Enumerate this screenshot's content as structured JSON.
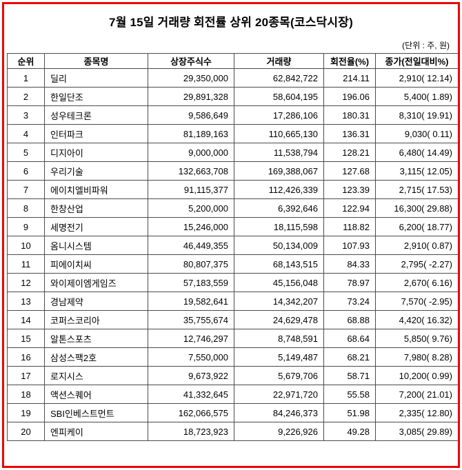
{
  "title": "7월 15일 거래량 회전률 상위 20종목(코스닥시장)",
  "unit_note": "(단위 : 주, 원)",
  "table": {
    "headers": [
      "순위",
      "종목명",
      "상장주식수",
      "거래량",
      "회전율(%)",
      "종가(전일대비%)"
    ],
    "rows": [
      {
        "rank": "1",
        "name": "딜리",
        "shares": "29,350,000",
        "volume": "62,842,722",
        "turnover": "214.11",
        "close": "2,910( 12.14)"
      },
      {
        "rank": "2",
        "name": "한일단조",
        "shares": "29,891,328",
        "volume": "58,604,195",
        "turnover": "196.06",
        "close": "5,400(  1.89)"
      },
      {
        "rank": "3",
        "name": "성우테크론",
        "shares": "9,586,649",
        "volume": "17,286,106",
        "turnover": "180.31",
        "close": "8,310( 19.91)"
      },
      {
        "rank": "4",
        "name": "인터파크",
        "shares": "81,189,163",
        "volume": "110,665,130",
        "turnover": "136.31",
        "close": "9,030(  0.11)"
      },
      {
        "rank": "5",
        "name": "디지아이",
        "shares": "9,000,000",
        "volume": "11,538,794",
        "turnover": "128.21",
        "close": "6,480( 14.49)"
      },
      {
        "rank": "6",
        "name": "우리기술",
        "shares": "132,663,708",
        "volume": "169,388,067",
        "turnover": "127.68",
        "close": "3,115( 12.05)"
      },
      {
        "rank": "7",
        "name": "에이치엘비파워",
        "shares": "91,115,377",
        "volume": "112,426,339",
        "turnover": "123.39",
        "close": "2,715( 17.53)"
      },
      {
        "rank": "8",
        "name": "한창산업",
        "shares": "5,200,000",
        "volume": "6,392,646",
        "turnover": "122.94",
        "close": "16,300( 29.88)"
      },
      {
        "rank": "9",
        "name": "세명전기",
        "shares": "15,246,000",
        "volume": "18,115,598",
        "turnover": "118.82",
        "close": "6,200( 18.77)"
      },
      {
        "rank": "10",
        "name": "옴니시스템",
        "shares": "46,449,355",
        "volume": "50,134,009",
        "turnover": "107.93",
        "close": "2,910(  0.87)"
      },
      {
        "rank": "11",
        "name": "피에이치씨",
        "shares": "80,807,375",
        "volume": "68,143,515",
        "turnover": "84.33",
        "close": "2,795( -2.27)"
      },
      {
        "rank": "12",
        "name": "와이제이엠게임즈",
        "shares": "57,183,559",
        "volume": "45,156,048",
        "turnover": "78.97",
        "close": "2,670(  6.16)"
      },
      {
        "rank": "13",
        "name": "경남제약",
        "shares": "19,582,641",
        "volume": "14,342,207",
        "turnover": "73.24",
        "close": "7,570( -2.95)"
      },
      {
        "rank": "14",
        "name": "코퍼스코리아",
        "shares": "35,755,674",
        "volume": "24,629,478",
        "turnover": "68.88",
        "close": "4,420( 16.32)"
      },
      {
        "rank": "15",
        "name": "알톤스포츠",
        "shares": "12,746,297",
        "volume": "8,748,591",
        "turnover": "68.64",
        "close": "5,850(  9.76)"
      },
      {
        "rank": "16",
        "name": "삼성스팩2호",
        "shares": "7,550,000",
        "volume": "5,149,487",
        "turnover": "68.21",
        "close": "7,980(  8.28)"
      },
      {
        "rank": "17",
        "name": "로지시스",
        "shares": "9,673,922",
        "volume": "5,679,706",
        "turnover": "58.71",
        "close": "10,200(  0.99)"
      },
      {
        "rank": "18",
        "name": "액션스퀘어",
        "shares": "41,332,645",
        "volume": "22,971,720",
        "turnover": "55.58",
        "close": "7,200( 21.01)"
      },
      {
        "rank": "19",
        "name": "SBI인베스트먼트",
        "shares": "162,066,575",
        "volume": "84,246,373",
        "turnover": "51.98",
        "close": "2,335( 12.80)"
      },
      {
        "rank": "20",
        "name": "엔피케이",
        "shares": "18,723,923",
        "volume": "9,226,926",
        "turnover": "49.28",
        "close": "3,085( 29.89)"
      }
    ]
  }
}
